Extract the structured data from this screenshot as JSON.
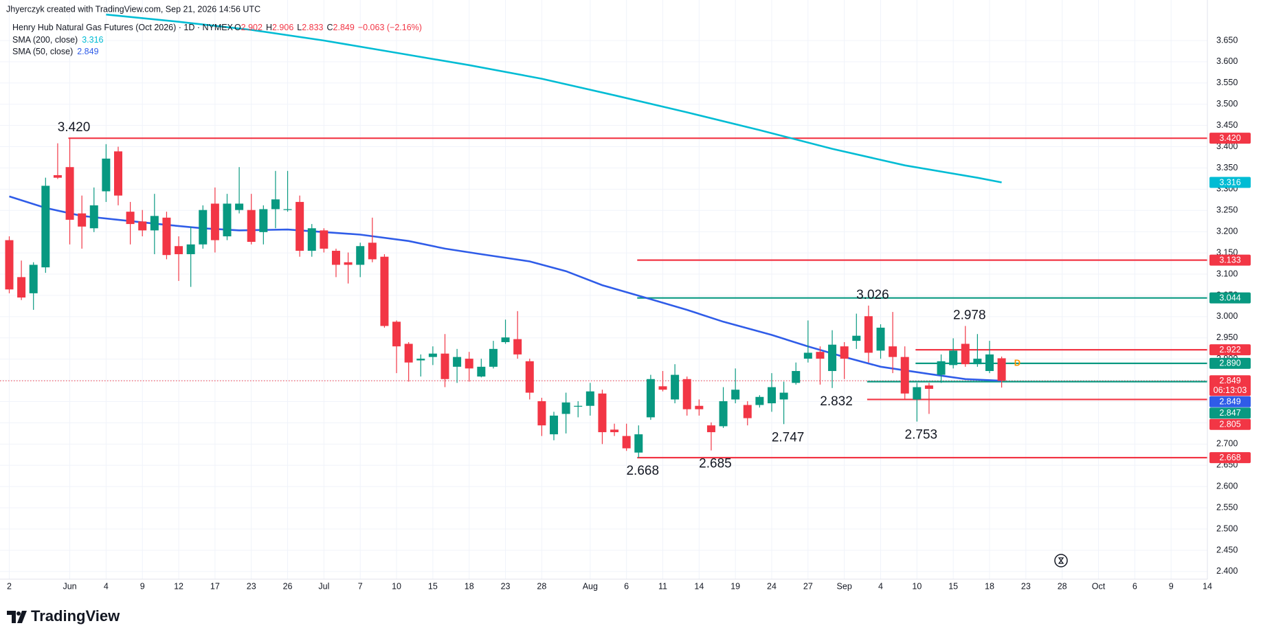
{
  "header": {
    "credit": "Jhyerczyk created with TradingView.com, Sep 21, 2026 14:56 UTC"
  },
  "legend": {
    "title": "Henry Hub Natural Gas Futures (Oct 2026) · 1D · NYMEX",
    "ohlc": [
      {
        "key": "O",
        "value": "2.902"
      },
      {
        "key": "H",
        "value": "2.906"
      },
      {
        "key": "L",
        "value": "2.833"
      },
      {
        "key": "C",
        "value": "2.849"
      }
    ],
    "change": "−0.063 (−2.16%)"
  },
  "footer": {
    "brand": "TradingView"
  },
  "chart_data": {
    "type": "candlestick",
    "up_color": "#089981",
    "down_color": "#f23645",
    "open": [
      3.18,
      3.093,
      3.055,
      3.116,
      3.333,
      3.352,
      3.243,
      3.208,
      3.295,
      3.389,
      3.247,
      3.224,
      3.203,
      3.233,
      3.166,
      3.147,
      3.17,
      3.266,
      3.189,
      3.251,
      3.251,
      3.199,
      3.253,
      3.251,
      3.27,
      3.155,
      3.203,
      3.155,
      3.128,
      3.122,
      3.174,
      3.141,
      2.988,
      2.936,
      2.897,
      2.905,
      2.913,
      2.882,
      2.901,
      2.859,
      2.882,
      2.94,
      2.947,
      2.895,
      2.801,
      2.723,
      2.771,
      2.788,
      2.79,
      2.819,
      2.734,
      2.719,
      2.68,
      2.763,
      2.836,
      2.805,
      2.853,
      2.79,
      2.744,
      2.742,
      2.805,
      2.792,
      2.792,
      2.796,
      2.805,
      2.844,
      2.901,
      2.917,
      2.872,
      2.93,
      2.943,
      3.001,
      2.92,
      2.93,
      2.905,
      2.805,
      2.838,
      2.863,
      2.886,
      2.936,
      2.888,
      2.872,
      2.902
    ],
    "high": [
      3.189,
      3.132,
      3.128,
      3.327,
      3.408,
      3.42,
      3.285,
      3.304,
      3.406,
      3.4,
      3.27,
      3.251,
      3.289,
      3.247,
      3.189,
      3.212,
      3.262,
      3.304,
      3.289,
      3.352,
      3.289,
      3.262,
      3.343,
      3.343,
      3.285,
      3.218,
      3.208,
      3.16,
      3.151,
      3.174,
      3.233,
      3.147,
      2.991,
      2.94,
      2.911,
      2.93,
      2.959,
      2.924,
      2.917,
      2.901,
      2.943,
      2.993,
      3.013,
      2.901,
      2.809,
      2.776,
      2.821,
      2.801,
      2.844,
      2.828,
      2.748,
      2.748,
      2.744,
      2.863,
      2.872,
      2.888,
      2.859,
      2.805,
      2.751,
      2.834,
      2.878,
      2.801,
      2.815,
      2.867,
      2.847,
      2.892,
      2.991,
      2.93,
      2.968,
      2.94,
      3.007,
      3.026,
      2.982,
      3.011,
      2.93,
      2.844,
      2.844,
      2.911,
      2.949,
      2.978,
      2.959,
      2.943,
      2.906
    ],
    "low": [
      3.055,
      3.039,
      3.016,
      3.103,
      3.324,
      3.17,
      3.16,
      3.199,
      3.27,
      3.262,
      3.17,
      3.189,
      3.147,
      3.135,
      3.084,
      3.07,
      3.16,
      3.151,
      3.18,
      3.243,
      3.17,
      3.17,
      3.208,
      3.247,
      3.141,
      3.141,
      3.151,
      3.093,
      3.078,
      3.093,
      3.128,
      2.974,
      2.867,
      2.847,
      2.859,
      2.886,
      2.834,
      2.844,
      2.847,
      2.857,
      2.878,
      2.936,
      2.901,
      2.805,
      2.719,
      2.709,
      2.725,
      2.763,
      2.767,
      2.7,
      2.719,
      2.684,
      2.668,
      2.757,
      2.824,
      2.796,
      2.767,
      2.767,
      2.685,
      2.738,
      2.796,
      2.744,
      2.786,
      2.776,
      2.747,
      2.84,
      2.892,
      2.84,
      2.832,
      2.853,
      2.924,
      2.892,
      2.901,
      2.867,
      2.805,
      2.753,
      2.771,
      2.844,
      2.878,
      2.882,
      2.882,
      2.867,
      2.833
    ],
    "close": [
      3.064,
      3.045,
      3.122,
      3.308,
      3.327,
      3.228,
      3.212,
      3.262,
      3.372,
      3.285,
      3.218,
      3.203,
      3.237,
      3.145,
      3.147,
      3.17,
      3.251,
      3.18,
      3.266,
      3.266,
      3.176,
      3.253,
      3.276,
      3.253,
      3.155,
      3.208,
      3.16,
      3.122,
      3.122,
      3.166,
      3.135,
      2.978,
      2.93,
      2.892,
      2.901,
      2.913,
      2.853,
      2.905,
      2.878,
      2.882,
      2.924,
      2.951,
      2.911,
      2.821,
      2.744,
      2.767,
      2.798,
      2.79,
      2.824,
      2.728,
      2.728,
      2.69,
      2.723,
      2.853,
      2.828,
      2.863,
      2.782,
      2.782,
      2.728,
      2.801,
      2.828,
      2.761,
      2.811,
      2.834,
      2.821,
      2.872,
      2.915,
      2.901,
      2.934,
      2.901,
      2.955,
      2.915,
      2.974,
      2.905,
      2.819,
      2.834,
      2.83,
      2.895,
      2.92,
      2.888,
      2.901,
      2.911,
      2.849
    ],
    "sma": [
      {
        "name": "SMA (200, close)",
        "color": "#00bcd4",
        "x": [
          8,
          14,
          20,
          26,
          32,
          38,
          44,
          50,
          56,
          62,
          68,
          74,
          80,
          82
        ],
        "values": [
          3.711,
          3.694,
          3.675,
          3.65,
          3.621,
          3.592,
          3.56,
          3.521,
          3.481,
          3.439,
          3.395,
          3.356,
          3.327,
          3.316
        ]
      },
      {
        "name": "SMA (50, close)",
        "color": "#2f5ce8",
        "x": [
          0,
          3,
          6,
          9,
          13,
          16,
          19,
          23,
          26,
          29,
          33,
          36,
          39,
          43,
          46,
          49,
          53,
          56,
          59,
          63,
          66,
          69,
          72,
          76,
          79,
          82
        ],
        "values": [
          3.283,
          3.256,
          3.237,
          3.228,
          3.216,
          3.208,
          3.203,
          3.205,
          3.199,
          3.193,
          3.178,
          3.16,
          3.147,
          3.13,
          3.107,
          3.074,
          3.041,
          3.016,
          2.988,
          2.957,
          2.93,
          2.905,
          2.882,
          2.865,
          2.853,
          2.849
        ]
      }
    ],
    "levels": [
      {
        "value": 3.42,
        "color": "#f23645",
        "from": 5
      },
      {
        "value": 3.133,
        "color": "#f23645",
        "from": 52
      },
      {
        "value": 3.044,
        "color": "#089981",
        "from": 52
      },
      {
        "value": 2.922,
        "color": "#f23645",
        "from": 75
      },
      {
        "value": 2.89,
        "color": "#089981",
        "from": 75
      },
      {
        "value": 2.847,
        "color": "#089981",
        "from": 71
      },
      {
        "value": 2.805,
        "color": "#f23645",
        "from": 71
      },
      {
        "value": 2.668,
        "color": "#f23645",
        "from": 52
      }
    ],
    "last_price_line": {
      "value": 2.849,
      "color": "#f23645"
    },
    "annotations": [
      {
        "label": "3.420",
        "value": 3.42,
        "bar": 5,
        "position": "above"
      },
      {
        "label": "3.026",
        "value": 3.026,
        "bar": 71,
        "position": "above"
      },
      {
        "label": "2.978",
        "value": 2.978,
        "bar": 79,
        "position": "above"
      },
      {
        "label": "2.668",
        "value": 2.668,
        "bar": 52,
        "position": "below"
      },
      {
        "label": "2.685",
        "value": 2.685,
        "bar": 58,
        "position": "below"
      },
      {
        "label": "2.747",
        "value": 2.747,
        "bar": 64,
        "position": "below"
      },
      {
        "label": "2.832",
        "value": 2.832,
        "bar": 68,
        "position": "below"
      },
      {
        "label": "2.753",
        "value": 2.753,
        "bar": 75,
        "position": "below"
      }
    ],
    "marker": {
      "label": "D",
      "value": 2.89,
      "bar": 83.3,
      "color": "#ff9800"
    },
    "axis_labels": [
      {
        "value": 3.42,
        "label": "3.420",
        "color": "#f23645"
      },
      {
        "value": 3.316,
        "label": "3.316",
        "color": "#00bcd4"
      },
      {
        "value": 3.133,
        "label": "3.133",
        "color": "#f23645"
      },
      {
        "value": 3.044,
        "label": "3.044",
        "color": "#089981"
      },
      {
        "value": 2.922,
        "label": "2.922",
        "color": "#f23645"
      },
      {
        "value": 2.89,
        "label": "2.890",
        "color": "#089981"
      },
      {
        "value": 2.849,
        "label": "2.849",
        "color": "#f23645",
        "countdown": "06:13:03"
      },
      {
        "value": 2.849,
        "label": "2.849",
        "color": "#2f5ce8"
      },
      {
        "value": 2.847,
        "label": "2.847",
        "color": "#089981"
      },
      {
        "value": 2.805,
        "label": "2.805",
        "color": "#f23645"
      },
      {
        "value": 2.668,
        "label": "2.668",
        "color": "#f23645"
      }
    ],
    "xlim": [
      -0.766,
      99
    ],
    "ylim": [
      2.382,
      3.713
    ],
    "grid": true,
    "xticks": [
      {
        "value": 0,
        "label": "2"
      },
      {
        "value": 5,
        "label": "Jun"
      },
      {
        "value": 8,
        "label": "4"
      },
      {
        "value": 11,
        "label": "9"
      },
      {
        "value": 14,
        "label": "12"
      },
      {
        "value": 17,
        "label": "17"
      },
      {
        "value": 20,
        "label": "23"
      },
      {
        "value": 23,
        "label": "26"
      },
      {
        "value": 26,
        "label": "Jul"
      },
      {
        "value": 29,
        "label": "7"
      },
      {
        "value": 32,
        "label": "10"
      },
      {
        "value": 35,
        "label": "15"
      },
      {
        "value": 38,
        "label": "18"
      },
      {
        "value": 41,
        "label": "23"
      },
      {
        "value": 44,
        "label": "28"
      },
      {
        "value": 48,
        "label": "Aug"
      },
      {
        "value": 51,
        "label": "6"
      },
      {
        "value": 54,
        "label": "11"
      },
      {
        "value": 57,
        "label": "14"
      },
      {
        "value": 60,
        "label": "19"
      },
      {
        "value": 63,
        "label": "24"
      },
      {
        "value": 66,
        "label": "27"
      },
      {
        "value": 69,
        "label": "Sep"
      },
      {
        "value": 72,
        "label": "4"
      },
      {
        "value": 75,
        "label": "10"
      },
      {
        "value": 78,
        "label": "15"
      },
      {
        "value": 81,
        "label": "18"
      },
      {
        "value": 84,
        "label": "23"
      },
      {
        "value": 87,
        "label": "28"
      },
      {
        "value": 90,
        "label": "Oct"
      },
      {
        "value": 93,
        "label": "6"
      },
      {
        "value": 96,
        "label": "9"
      },
      {
        "value": 99,
        "label": "14"
      }
    ],
    "yticks": [
      {
        "value": 2.4,
        "label": "2.400"
      },
      {
        "value": 2.45,
        "label": "2.450"
      },
      {
        "value": 2.5,
        "label": "2.500"
      },
      {
        "value": 2.55,
        "label": "2.550"
      },
      {
        "value": 2.6,
        "label": "2.600"
      },
      {
        "value": 2.65,
        "label": "2.650"
      },
      {
        "value": 2.7,
        "label": "2.700"
      },
      {
        "value": 2.75,
        "label": "2.750"
      },
      {
        "value": 2.8,
        "label": "2.800"
      },
      {
        "value": 2.85,
        "label": "2.850"
      },
      {
        "value": 2.9,
        "label": "2.900"
      },
      {
        "value": 2.95,
        "label": "2.950"
      },
      {
        "value": 3.0,
        "label": "3.000"
      },
      {
        "value": 3.05,
        "label": "3.050"
      },
      {
        "value": 3.1,
        "label": "3.100"
      },
      {
        "value": 3.15,
        "label": "3.150"
      },
      {
        "value": 3.2,
        "label": "3.200"
      },
      {
        "value": 3.25,
        "label": "3.250"
      },
      {
        "value": 3.3,
        "label": "3.300"
      },
      {
        "value": 3.35,
        "label": "3.350"
      },
      {
        "value": 3.4,
        "label": "3.400"
      },
      {
        "value": 3.45,
        "label": "3.450"
      },
      {
        "value": 3.5,
        "label": "3.500"
      },
      {
        "value": 3.55,
        "label": "3.550"
      },
      {
        "value": 3.6,
        "label": "3.600"
      },
      {
        "value": 3.65,
        "label": "3.650"
      }
    ]
  }
}
